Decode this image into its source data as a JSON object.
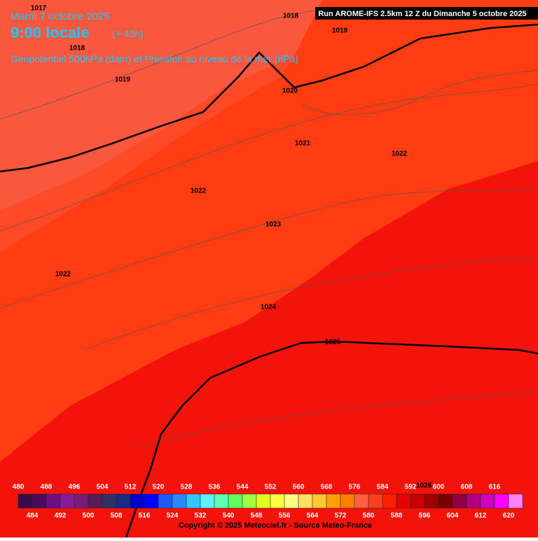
{
  "header": {
    "date": "Mardi 7 octobre 2025",
    "time": "9:00 locale",
    "lead": "(+ 43h)",
    "field": "Geopotentiel 500hPa (dam) et Pression au niveau de la mer (hPa)",
    "run": "Run AROME-IFS 2.5km 12 Z du Dimanche 5 octobre 2025"
  },
  "isobar_labels": [
    "1017",
    "1018",
    "1019",
    "1018",
    "1019",
    "1020",
    "1021",
    "1022",
    "1022",
    "1023",
    "1022",
    "1024",
    "1025",
    "1026"
  ],
  "colorbar": {
    "levels": [
      480,
      484,
      488,
      492,
      496,
      500,
      504,
      508,
      512,
      516,
      520,
      524,
      528,
      532,
      536,
      540,
      544,
      548,
      552,
      556,
      560,
      564,
      568,
      572,
      576,
      580,
      584,
      588,
      592,
      596,
      600,
      604,
      608,
      612,
      616,
      620
    ],
    "colors": [
      "#3a0a4a",
      "#4b0a5a",
      "#6a1080",
      "#8a1a9a",
      "#7a1a7a",
      "#5a1a5a",
      "#303068",
      "#1a2a8a",
      "#0000c8",
      "#0000ff",
      "#1a5aff",
      "#2a8aff",
      "#30c8ff",
      "#60f0ff",
      "#60ffb0",
      "#60ff60",
      "#a0ff40",
      "#e0ff20",
      "#ffff40",
      "#ffff80",
      "#ffe060",
      "#ffc830",
      "#ffa000",
      "#ff8000",
      "#ff6040",
      "#ff4020",
      "#ff2000",
      "#e80000",
      "#c80000",
      "#a00000",
      "#780000",
      "#900040",
      "#b00080",
      "#d000c0",
      "#ff00ff",
      "#ff80ff"
    ]
  },
  "copyright": "Copyright © 2025 Meteociel.fr - Source Meteo-France"
}
